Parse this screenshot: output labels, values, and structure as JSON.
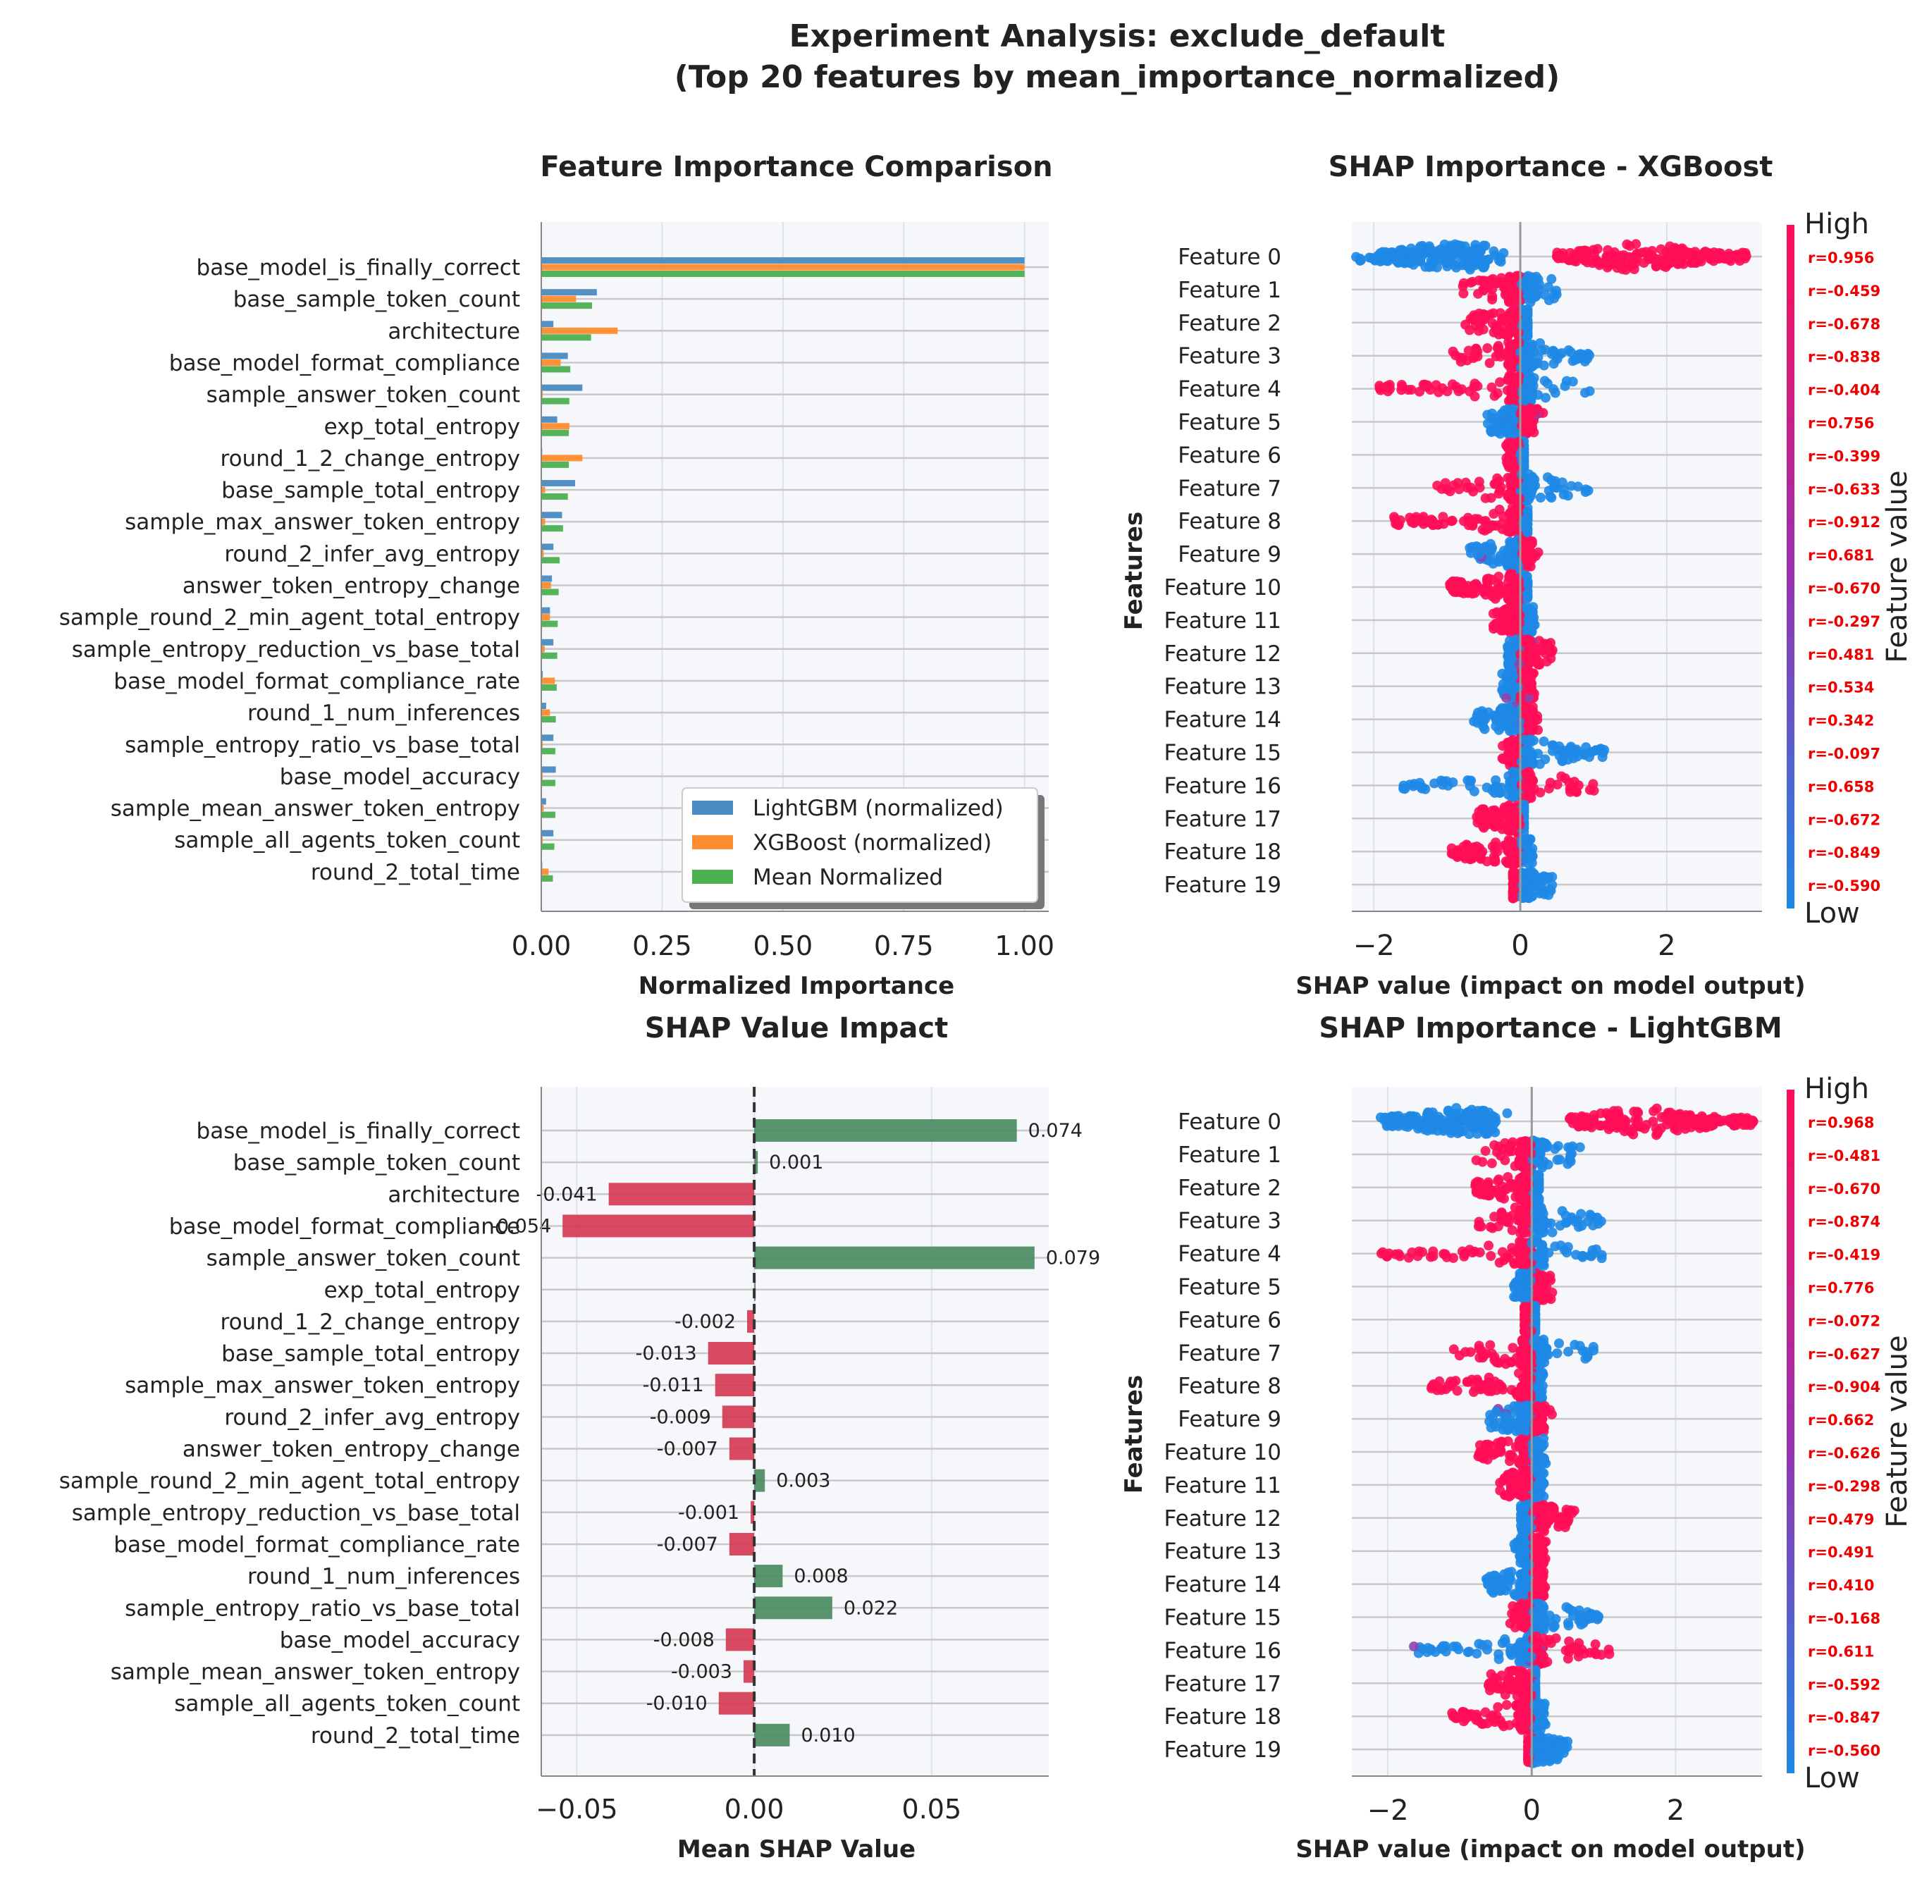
{
  "suptitle_lines": [
    "Experiment Analysis: exclude_default",
    "(Top 20 features by mean_importance_normalized)"
  ],
  "colors": {
    "lightgbm": "#4a8bc2",
    "xgboost": "#ff8c2e",
    "mean": "#4caf50",
    "positive": "#4a8c63",
    "negative": "#d53a55",
    "shap_low": "#1e88e5",
    "shap_high": "#ff0d57",
    "panel_bg": "#f5f7fa",
    "grid": "#c8c8c8",
    "corr": "#ee0000"
  },
  "features": [
    "base_model_is_finally_correct",
    "base_sample_token_count",
    "architecture",
    "base_model_format_compliance",
    "sample_answer_token_count",
    "exp_total_entropy",
    "round_1_2_change_entropy",
    "base_sample_total_entropy",
    "sample_max_answer_token_entropy",
    "round_2_infer_avg_entropy",
    "answer_token_entropy_change",
    "sample_round_2_min_agent_total_entropy",
    "sample_entropy_reduction_vs_base_total",
    "base_model_format_compliance_rate",
    "round_1_num_inferences",
    "sample_entropy_ratio_vs_base_total",
    "base_model_accuracy",
    "sample_mean_answer_token_entropy",
    "sample_all_agents_token_count",
    "round_2_total_time"
  ],
  "chart_data": [
    {
      "type": "bar",
      "orientation": "horizontal",
      "title": "Feature Importance Comparison",
      "xlabel": "Normalized Importance",
      "ylabel": "",
      "xlim": [
        0,
        1.05
      ],
      "xticks": [
        "0.00",
        "0.25",
        "0.50",
        "0.75",
        "1.00"
      ],
      "legend_location": "lower-right",
      "series": [
        {
          "name": "LightGBM (normalized)",
          "values": [
            1.0,
            0.115,
            0.025,
            0.055,
            0.085,
            0.033,
            0.002,
            0.07,
            0.043,
            0.025,
            0.022,
            0.018,
            0.025,
            0.003,
            0.01,
            0.025,
            0.03,
            0.01,
            0.025,
            0.002
          ]
        },
        {
          "name": "XGBoost (normalized)",
          "values": [
            1.0,
            0.072,
            0.158,
            0.04,
            0.003,
            0.058,
            0.085,
            0.008,
            0.008,
            0.005,
            0.02,
            0.018,
            0.007,
            0.028,
            0.018,
            0.003,
            0.003,
            0.005,
            0.003,
            0.015
          ]
        },
        {
          "name": "Mean Normalized",
          "values": [
            1.0,
            0.105,
            0.103,
            0.06,
            0.058,
            0.057,
            0.057,
            0.055,
            0.045,
            0.038,
            0.036,
            0.034,
            0.033,
            0.032,
            0.03,
            0.029,
            0.029,
            0.029,
            0.027,
            0.024
          ]
        }
      ]
    },
    {
      "type": "scatter",
      "subtype": "shap_beeswarm",
      "title": "SHAP Importance - XGBoost",
      "xlabel": "SHAP value (impact on model output)",
      "ylabel": "Features",
      "xlim": [
        -2.3,
        3.3
      ],
      "xticks": [
        "−2",
        "0",
        "2"
      ],
      "colorbar": {
        "label": "Feature value",
        "high": "High",
        "low": "Low"
      },
      "labels": [
        "Feature 0",
        "Feature 1",
        "Feature 2",
        "Feature 3",
        "Feature 4",
        "Feature 5",
        "Feature 6",
        "Feature 7",
        "Feature 8",
        "Feature 9",
        "Feature 10",
        "Feature 11",
        "Feature 12",
        "Feature 13",
        "Feature 14",
        "Feature 15",
        "Feature 16",
        "Feature 17",
        "Feature 18",
        "Feature 19"
      ],
      "correlations": [
        "r=0.956",
        "r=-0.459",
        "r=-0.678",
        "r=-0.838",
        "r=-0.404",
        "r=0.756",
        "r=-0.399",
        "r=-0.633",
        "r=-0.912",
        "r=0.681",
        "r=-0.670",
        "r=-0.297",
        "r=0.481",
        "r=0.534",
        "r=0.342",
        "r=-0.097",
        "r=0.658",
        "r=-0.672",
        "r=-0.849",
        "r=-0.590"
      ],
      "ranges": [
        [
          -2.15,
          3.1
        ],
        [
          -0.8,
          0.5
        ],
        [
          -0.75,
          0.1
        ],
        [
          -0.95,
          0.95
        ],
        [
          -1.95,
          1.0
        ],
        [
          -0.45,
          0.35
        ],
        [
          -0.2,
          0.05
        ],
        [
          -1.15,
          0.95
        ],
        [
          -1.75,
          0.1
        ],
        [
          -0.7,
          0.25
        ],
        [
          -1.0,
          0.1
        ],
        [
          -0.4,
          0.2
        ],
        [
          -0.2,
          0.5
        ],
        [
          -0.25,
          0.2
        ],
        [
          -0.65,
          0.25
        ],
        [
          -0.25,
          1.15
        ],
        [
          -1.6,
          1.05
        ],
        [
          -0.6,
          0.05
        ],
        [
          -0.95,
          0.2
        ],
        [
          -0.1,
          0.45
        ]
      ]
    },
    {
      "type": "bar",
      "orientation": "horizontal",
      "title": "SHAP Value Impact",
      "xlabel": "Mean SHAP Value",
      "ylabel": "",
      "xlim": [
        -0.06,
        0.083
      ],
      "xticks": [
        "−0.05",
        "0.00",
        "0.05"
      ],
      "values": [
        0.074,
        0.001,
        -0.041,
        -0.054,
        0.079,
        0.0,
        -0.002,
        -0.013,
        -0.011,
        -0.009,
        -0.007,
        0.003,
        -0.001,
        -0.007,
        0.008,
        0.022,
        -0.008,
        -0.003,
        -0.01,
        0.01
      ],
      "value_labels": [
        "0.074",
        "0.001",
        "-0.041",
        "-0.054",
        "0.079",
        "",
        "-0.002",
        "-0.013",
        "-0.011",
        "-0.009",
        "-0.007",
        "0.003",
        "-0.001",
        "-0.007",
        "0.008",
        "0.022",
        "-0.008",
        "-0.003",
        "-0.010",
        "0.010"
      ]
    },
    {
      "type": "scatter",
      "subtype": "shap_beeswarm",
      "title": "SHAP Importance - LightGBM",
      "xlabel": "SHAP value (impact on model output)",
      "ylabel": "Features",
      "xlim": [
        -2.5,
        3.2
      ],
      "xticks": [
        "−2",
        "0",
        "2"
      ],
      "colorbar": {
        "label": "Feature value",
        "high": "High",
        "low": "Low"
      },
      "labels": [
        "Feature 0",
        "Feature 1",
        "Feature 2",
        "Feature 3",
        "Feature 4",
        "Feature 5",
        "Feature 6",
        "Feature 7",
        "Feature 8",
        "Feature 9",
        "Feature 10",
        "Feature 11",
        "Feature 12",
        "Feature 13",
        "Feature 14",
        "Feature 15",
        "Feature 16",
        "Feature 17",
        "Feature 18",
        "Feature 19"
      ],
      "correlations": [
        "r=0.968",
        "r=-0.481",
        "r=-0.670",
        "r=-0.874",
        "r=-0.419",
        "r=0.776",
        "r=-0.072",
        "r=-0.627",
        "r=-0.904",
        "r=0.662",
        "r=-0.626",
        "r=-0.298",
        "r=0.479",
        "r=0.491",
        "r=0.410",
        "r=-0.168",
        "r=0.611",
        "r=-0.592",
        "r=-0.847",
        "r=-0.560"
      ],
      "ranges": [
        [
          -2.3,
          3.0
        ],
        [
          -0.8,
          0.7
        ],
        [
          -0.8,
          0.1
        ],
        [
          -0.75,
          1.0
        ],
        [
          -2.1,
          1.0
        ],
        [
          -0.25,
          0.3
        ],
        [
          -0.1,
          0.05
        ],
        [
          -1.15,
          0.9
        ],
        [
          -1.4,
          0.2
        ],
        [
          -0.6,
          0.3
        ],
        [
          -0.75,
          0.2
        ],
        [
          -0.45,
          0.2
        ],
        [
          -0.15,
          0.6
        ],
        [
          -0.25,
          0.2
        ],
        [
          -0.65,
          0.2
        ],
        [
          -0.3,
          0.95
        ],
        [
          -1.65,
          1.1
        ],
        [
          -0.6,
          0.05
        ],
        [
          -1.15,
          0.2
        ],
        [
          -0.05,
          0.5
        ]
      ]
    }
  ]
}
